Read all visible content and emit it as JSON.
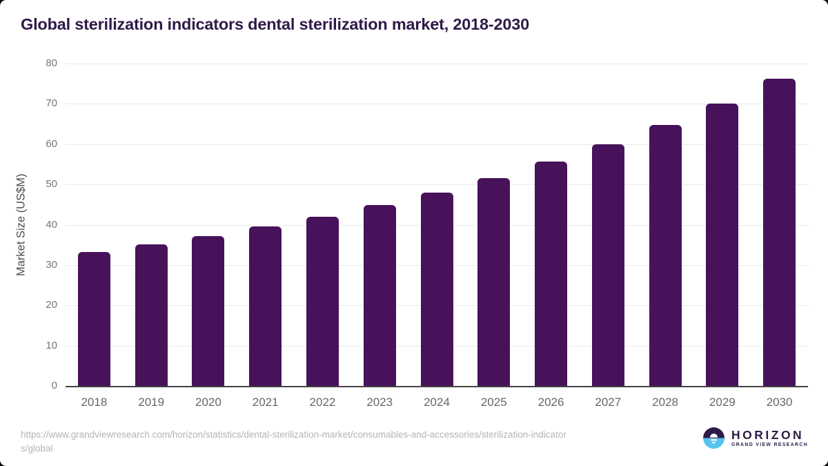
{
  "page": {
    "title": "Global sterilization indicators dental sterilization market, 2018-2030",
    "source_url": "https://www.grandviewresearch.com/horizon/statistics/dental-sterilization-market/consumables-and-accessories/sterilization-indicators/global"
  },
  "logo": {
    "name": "HORIZON",
    "subtitle": "GRAND VIEW RESEARCH"
  },
  "chart_data": {
    "type": "bar",
    "title": "Global sterilization indicators dental sterilization market, 2018-2030",
    "categories": [
      "2018",
      "2019",
      "2020",
      "2021",
      "2022",
      "2023",
      "2024",
      "2025",
      "2026",
      "2027",
      "2028",
      "2029",
      "2030"
    ],
    "values": [
      33.3,
      35.1,
      37.1,
      39.5,
      42.0,
      44.9,
      48.0,
      51.5,
      55.6,
      59.9,
      64.8,
      70.1,
      76.2
    ],
    "xlabel": "",
    "ylabel": "Market Size (US$M)",
    "ylim": [
      0,
      80
    ],
    "ytick_step": 10,
    "grid": true,
    "legend": "none",
    "bar_color": "#471259"
  },
  "colors": {
    "bar": "#471259",
    "title_text": "#2e1a47",
    "axis_line": "#424242",
    "gridline": "#e9e9e9",
    "tick_text": "#757575",
    "url_text": "#b4b4b4",
    "logo_purple": "#2d1b47",
    "logo_blue": "#55c3ee"
  }
}
